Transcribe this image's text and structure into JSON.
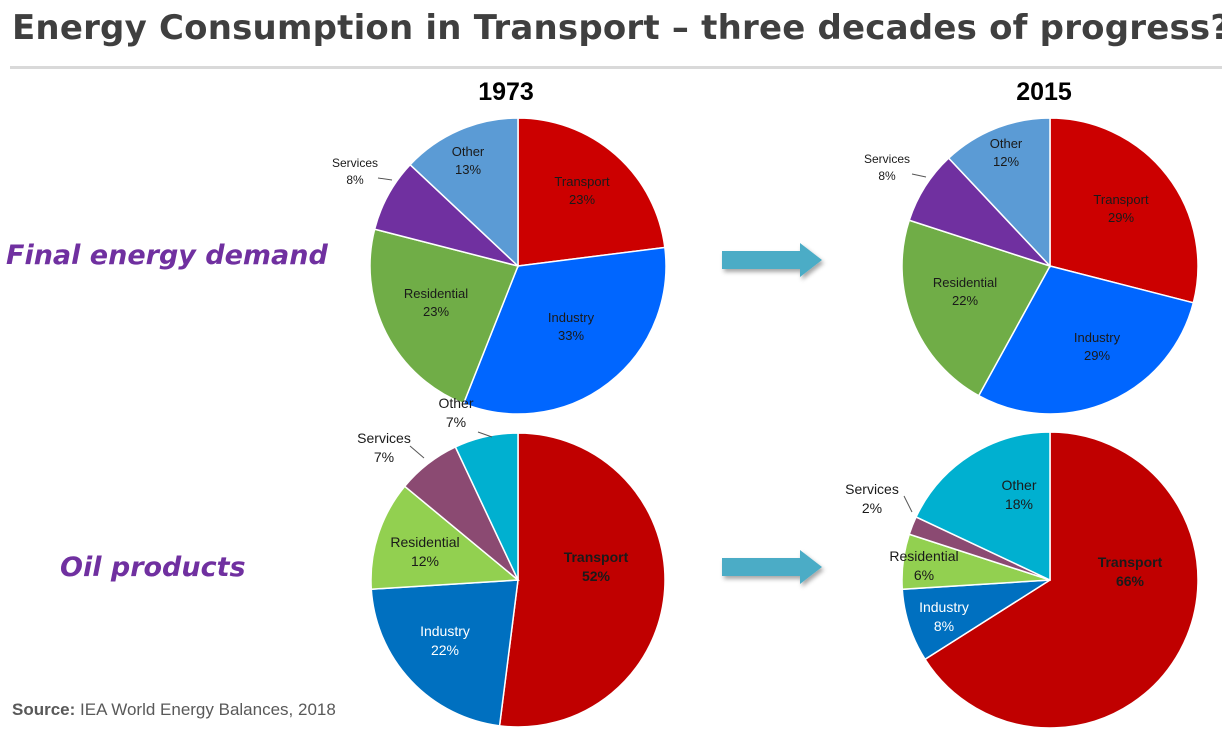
{
  "title": "Energy Consumption in Transport – three decades of progress?",
  "years": {
    "left": "1973",
    "right": "2015"
  },
  "row_labels": {
    "final": "Final energy demand",
    "oil": "Oil products"
  },
  "source": {
    "prefix": "Source:",
    "text": "IEA World Energy Balances, 2018"
  },
  "arrow_color": "#4bacc6",
  "chart_data": [
    {
      "type": "pie",
      "title": "1973",
      "row": "Final energy demand",
      "slices": [
        {
          "label": "Transport",
          "value": 23,
          "display": "23%",
          "color": "#cc0000"
        },
        {
          "label": "Industry",
          "value": 33,
          "display": "33%",
          "color": "#0066ff"
        },
        {
          "label": "Residential",
          "value": 23,
          "display": "23%",
          "color": "#70ad47"
        },
        {
          "label": "Services",
          "value": 8,
          "display": "8%",
          "color": "#7030a0"
        },
        {
          "label": "Other",
          "value": 13,
          "display": "13%",
          "color": "#5b9bd5"
        }
      ]
    },
    {
      "type": "pie",
      "title": "2015",
      "row": "Final energy demand",
      "slices": [
        {
          "label": "Transport",
          "value": 29,
          "display": "29%",
          "color": "#cc0000"
        },
        {
          "label": "Industry",
          "value": 29,
          "display": "29%",
          "color": "#0066ff"
        },
        {
          "label": "Residential",
          "value": 22,
          "display": "22%",
          "color": "#70ad47"
        },
        {
          "label": "Services",
          "value": 8,
          "display": "8%",
          "color": "#7030a0"
        },
        {
          "label": "Other",
          "value": 12,
          "display": "12%",
          "color": "#5b9bd5"
        }
      ]
    },
    {
      "type": "pie",
      "title": "1973",
      "row": "Oil products",
      "slices": [
        {
          "label": "Transport",
          "value": 52,
          "display": "52%",
          "color": "#c00000"
        },
        {
          "label": "Industry",
          "value": 22,
          "display": "22%",
          "color": "#0070c0"
        },
        {
          "label": "Residential",
          "value": 12,
          "display": "12%",
          "color": "#92d050"
        },
        {
          "label": "Services",
          "value": 7,
          "display": "7%",
          "color": "#8b4a72"
        },
        {
          "label": "Other",
          "value": 7,
          "display": "7%",
          "color": "#00b0d0"
        }
      ]
    },
    {
      "type": "pie",
      "title": "2015",
      "row": "Oil products",
      "slices": [
        {
          "label": "Transport",
          "value": 66,
          "display": "66%",
          "color": "#c00000"
        },
        {
          "label": "Industry",
          "value": 8,
          "display": "8%",
          "color": "#0070c0"
        },
        {
          "label": "Residential",
          "value": 6,
          "display": "6%",
          "color": "#92d050"
        },
        {
          "label": "Services",
          "value": 2,
          "display": "2%",
          "color": "#8b4a72"
        },
        {
          "label": "Other",
          "value": 18,
          "display": "18%",
          "color": "#00b0d0"
        }
      ]
    }
  ]
}
